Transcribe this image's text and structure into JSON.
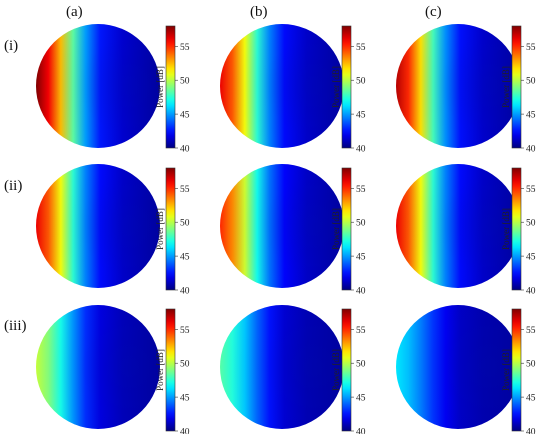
{
  "columns": [
    "(a)",
    "(b)",
    "(c)"
  ],
  "rows": [
    "(i)",
    "(ii)",
    "(iii)"
  ],
  "colorbar": {
    "label": "Power [dB]",
    "ticks": [
      40,
      45,
      50,
      55
    ],
    "range": [
      40,
      58
    ]
  },
  "chart_data": {
    "type": "heatmap",
    "layout": "3x3 grid of circular power maps, each with a vertical colorbar",
    "colormap": "jet",
    "value_unit": "dB",
    "zlim": [
      40,
      58
    ],
    "panels": [
      {
        "row": "(i)",
        "col": "(a)",
        "peak_db": 58,
        "high_power_side": "left"
      },
      {
        "row": "(i)",
        "col": "(b)",
        "peak_db": 56,
        "high_power_side": "left"
      },
      {
        "row": "(i)",
        "col": "(c)",
        "peak_db": 57,
        "high_power_side": "left"
      },
      {
        "row": "(ii)",
        "col": "(a)",
        "peak_db": 56,
        "high_power_side": "left"
      },
      {
        "row": "(ii)",
        "col": "(b)",
        "peak_db": 55,
        "high_power_side": "left"
      },
      {
        "row": "(ii)",
        "col": "(c)",
        "peak_db": 56,
        "high_power_side": "left"
      },
      {
        "row": "(iii)",
        "col": "(a)",
        "peak_db": 50,
        "high_power_side": "left"
      },
      {
        "row": "(iii)",
        "col": "(b)",
        "peak_db": 48,
        "high_power_side": "left"
      },
      {
        "row": "(iii)",
        "col": "(c)",
        "peak_db": 46,
        "high_power_side": "left"
      }
    ]
  }
}
